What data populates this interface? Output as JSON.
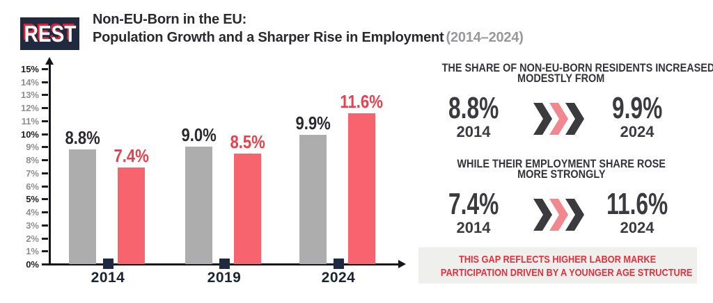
{
  "brand": {
    "logo_text": "REST"
  },
  "header": {
    "title_line1": "Non-EU-Born in the EU:",
    "title_line2": "Population Growth and a Sharper Rise in Employment",
    "title_period": "(2014–2024)"
  },
  "chart_data": {
    "type": "bar",
    "categories": [
      "2014",
      "2019",
      "2024"
    ],
    "series": [
      {
        "name": "population-share",
        "color": "#adadad",
        "label_color": "#2b292d",
        "values": [
          8.8,
          9.0,
          9.9
        ],
        "labels": [
          "8.8%",
          "9.0%",
          "9.9%"
        ]
      },
      {
        "name": "employment-share",
        "color": "#f8646e",
        "label_color": "#e8414d",
        "values": [
          7.4,
          8.5,
          11.6
        ],
        "labels": [
          "7.4%",
          "8.5%",
          "11.6%"
        ]
      }
    ],
    "ylim": [
      0,
      15
    ],
    "y_ticks": [
      "0%",
      "1%",
      "2%",
      "3%",
      "4%",
      "5%",
      "6%",
      "7%",
      "8%",
      "9%",
      "10%",
      "11%",
      "12%",
      "13%",
      "14%",
      "15%"
    ],
    "emphasized_ticks": [
      "0%",
      "5%",
      "10%",
      "15%"
    ],
    "grid": false,
    "legend": "none"
  },
  "insights": [
    {
      "heading_line1": "THE SHARE OF NON-EU-BORN RESIDENTS INCREASED",
      "heading_line2": "MODESTLY FROM",
      "from": {
        "value": "8.8%",
        "year": "2014"
      },
      "to": {
        "value": "9.9%",
        "year": "2024"
      }
    },
    {
      "heading_line1": "WHILE THEIR EMPLOYMENT SHARE ROSE",
      "heading_line2": "MORE STRONGLY",
      "from": {
        "value": "7.4%",
        "year": "2014"
      },
      "to": {
        "value": "11.6%",
        "year": "2024"
      }
    }
  ],
  "footnote": {
    "line1": "THIS GAP REFLECTS HIGHER LABOR MARKE",
    "line2": "PARTICIPATION DRIVEN BY A YOUNGER AGE STRUCTURE"
  },
  "icons": {
    "chevron": "triple-chevron-icon"
  },
  "colors": {
    "navy": "#1f2a40",
    "gray_bar": "#adadad",
    "red_bar": "#f8646e",
    "red_label": "#e8414d",
    "charcoal": "#3b3a3f",
    "chevron_pink": "#f1888f",
    "footnote_red": "#e5303b",
    "footnote_bg": "#efefee",
    "title_period_gray": "#98979b"
  }
}
